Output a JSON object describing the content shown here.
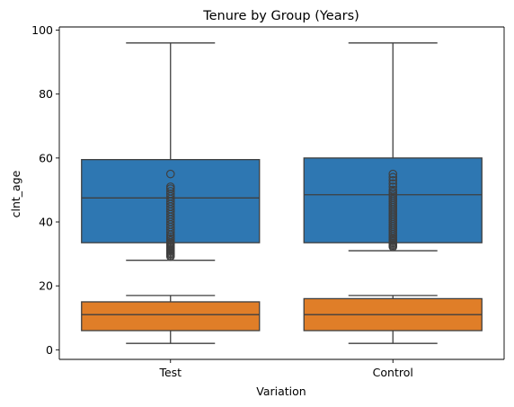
{
  "chart_data": {
    "type": "boxplot",
    "title": "Tenure by Group (Years)",
    "xlabel": "Variation",
    "ylabel": "clnt_age",
    "categories": [
      "Test",
      "Control"
    ],
    "ylim": [
      -3,
      101
    ],
    "yticks": [
      0,
      20,
      40,
      60,
      80,
      100
    ],
    "grid": false,
    "series": [
      {
        "color": "#2e77b2",
        "boxes": [
          {
            "category": "Test",
            "whisker_low": 28,
            "q1": 33.5,
            "median": 47.5,
            "q3": 59.5,
            "whisker_high": 96,
            "outliers": [
              29.2,
              29.6,
              30.0,
              30.4,
              30.8,
              31.2,
              31.6,
              32.0,
              32.4,
              32.8,
              33.2,
              33.6,
              34.2,
              34.8,
              35.4,
              36.0,
              36.8,
              37.6,
              38.4,
              39.2,
              40.0,
              40.8,
              41.6,
              42.4,
              43.2,
              44.0,
              44.8,
              45.6,
              46.4,
              47.2,
              48.0,
              48.8,
              49.6,
              50.4,
              51.0,
              55.0
            ]
          },
          {
            "category": "Control",
            "whisker_low": 31,
            "q1": 33.5,
            "median": 48.5,
            "q3": 60,
            "whisker_high": 96,
            "outliers": [
              32.2,
              32.6,
              33.0,
              33.4,
              33.8,
              34.2,
              34.6,
              35.0,
              35.6,
              36.2,
              36.8,
              37.4,
              38.0,
              38.6,
              39.2,
              39.8,
              40.4,
              41.0,
              41.6,
              42.2,
              42.8,
              43.4,
              44.0,
              44.6,
              45.2,
              45.8,
              46.4,
              47.0,
              47.6,
              48.2,
              48.8,
              49.4,
              50.0,
              51.0,
              52.0,
              53.0,
              54.0,
              55.0
            ]
          }
        ]
      },
      {
        "color": "#e07e28",
        "boxes": [
          {
            "category": "Test",
            "whisker_low": 2,
            "q1": 6,
            "median": 11,
            "q3": 15,
            "whisker_high": 17,
            "outliers": []
          },
          {
            "category": "Control",
            "whisker_low": 2,
            "q1": 6,
            "median": 11,
            "q3": 16,
            "whisker_high": 17,
            "outliers": []
          }
        ]
      }
    ]
  }
}
